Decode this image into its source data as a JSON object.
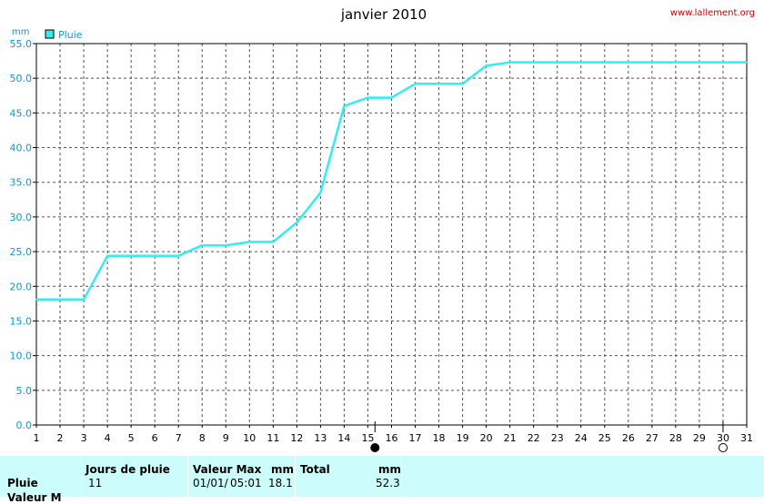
{
  "site": "www.lallement.org",
  "chart_data": {
    "type": "line",
    "title": "janvier 2010",
    "ylabel": "mm",
    "series": [
      {
        "name": "Pluie",
        "color": "#33eeee",
        "points": [
          [
            1,
            18.1
          ],
          [
            3,
            18.1
          ],
          [
            4,
            24.4
          ],
          [
            7,
            24.4
          ],
          [
            8,
            25.9
          ],
          [
            9,
            25.9
          ],
          [
            10,
            26.4
          ],
          [
            11,
            26.4
          ],
          [
            12,
            29.2
          ],
          [
            13,
            33.5
          ],
          [
            14,
            46.0
          ],
          [
            15,
            47.2
          ],
          [
            16,
            47.2
          ],
          [
            17,
            49.2
          ],
          [
            19,
            49.2
          ],
          [
            20,
            51.8
          ],
          [
            21,
            52.3
          ],
          [
            31,
            52.3
          ]
        ]
      }
    ],
    "xlim": [
      1,
      31
    ],
    "ylim": [
      0,
      55
    ],
    "xticks": [
      "1",
      "2",
      "3",
      "4",
      "5",
      "6",
      "7",
      "8",
      "9",
      "10",
      "11",
      "12",
      "13",
      "14",
      "15",
      "16",
      "17",
      "18",
      "19",
      "20",
      "21",
      "22",
      "23",
      "24",
      "25",
      "26",
      "27",
      "28",
      "29",
      "30",
      "31"
    ],
    "yticks": [
      "0.0",
      "5.0",
      "10.0",
      "15.0",
      "20.0",
      "25.0",
      "30.0",
      "35.0",
      "40.0",
      "45.0",
      "50.0",
      "55.0"
    ],
    "grid": true,
    "legend_position": "top-left",
    "moon_phases": [
      {
        "day": 15.3,
        "phase": "full"
      },
      {
        "day": 30.0,
        "phase": "new"
      }
    ]
  },
  "stats": {
    "row_label": "Pluie",
    "row_label_2": "Valeur M",
    "days_header": "Jours de pluie",
    "days_value": "11",
    "max_header": "Valeur Max",
    "max_unit_header": "mm",
    "max_date": "01/01/",
    "max_time": "05:01",
    "max_value": "18.1",
    "total_header": "Total",
    "total_unit_header": "mm",
    "total_value": "52.3"
  }
}
